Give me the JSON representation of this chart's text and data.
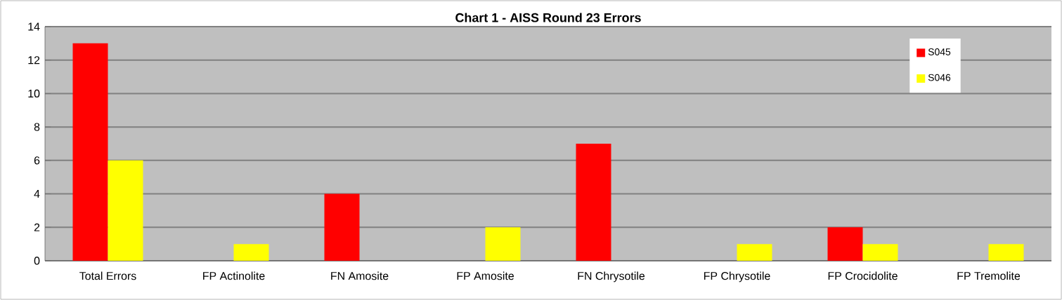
{
  "chart_data": {
    "type": "bar",
    "title": "Chart 1 - AISS Round 23 Errors",
    "categories": [
      "Total Errors",
      "FP Actinolite",
      "FN Amosite",
      "FP Amosite",
      "FN Chrysotile",
      "FP Chrysotile",
      "FP Crocidolite",
      "FP Tremolite"
    ],
    "series": [
      {
        "name": "S045",
        "color": "#ff0000",
        "values": [
          13,
          0,
          4,
          0,
          7,
          0,
          2,
          0
        ]
      },
      {
        "name": "S046",
        "color": "#ffff00",
        "values": [
          6,
          1,
          0,
          2,
          0,
          1,
          1,
          1
        ]
      }
    ],
    "ylim": [
      0,
      14
    ],
    "yticks": [
      0,
      2,
      4,
      6,
      8,
      10,
      12,
      14
    ],
    "grid": "y",
    "legend": "top right"
  }
}
